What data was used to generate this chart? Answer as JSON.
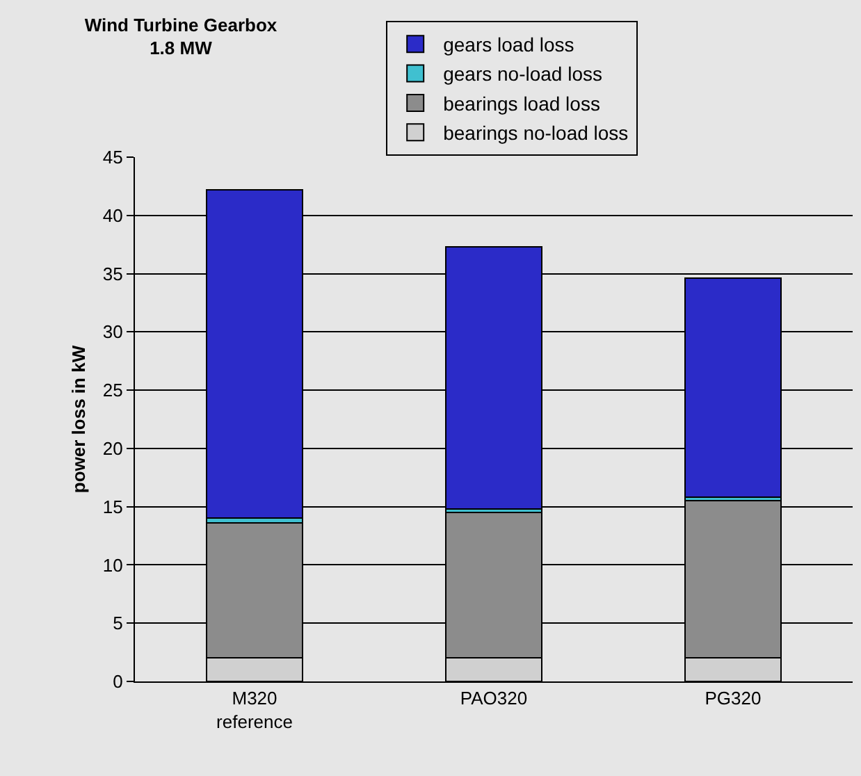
{
  "chart_data": {
    "type": "bar",
    "title": "Wind Turbine Gearbox\n1.8 MW",
    "ylabel": "power loss in kW",
    "categories": [
      "M320\nreference",
      "PAO320",
      "PG320"
    ],
    "stacked": true,
    "ylim": [
      0,
      45
    ],
    "yticks": [
      0,
      5,
      10,
      15,
      20,
      25,
      30,
      35,
      40,
      45
    ],
    "grid": "y",
    "legend": "top right",
    "series": [
      {
        "name": "bearings no-load loss",
        "color": "#d0d0d0",
        "values": [
          2,
          2,
          2
        ]
      },
      {
        "name": "bearings load loss",
        "color": "#8c8c8c",
        "values": [
          11.6,
          12.5,
          13.5
        ]
      },
      {
        "name": "gears no-load loss",
        "color": "#40c0d0",
        "values": [
          0.4,
          0.3,
          0.3
        ]
      },
      {
        "name": "gears load loss",
        "color": "#2b2bc8",
        "values": [
          28.2,
          22.5,
          18.8
        ]
      }
    ]
  }
}
